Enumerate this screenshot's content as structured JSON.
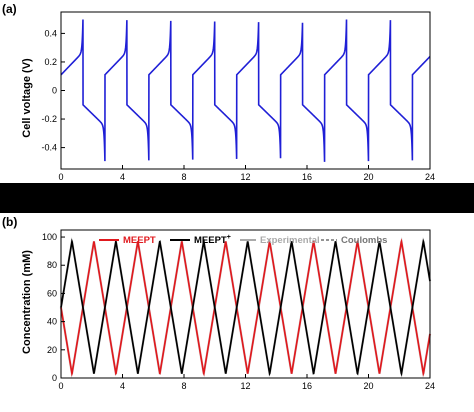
{
  "chart_data": [
    {
      "type": "line",
      "panel_label": "(a)",
      "ylabel": "Cell voltage (V)",
      "xlim": [
        0,
        24
      ],
      "ylim": [
        -0.55,
        0.55
      ],
      "xticks": [
        0,
        4,
        8,
        12,
        16,
        20,
        24
      ],
      "yticks": [
        -0.4,
        -0.2,
        0,
        0.2,
        0.4
      ],
      "ytick_labels": [
        "-0.4",
        "-0.2",
        "0",
        "0.2",
        "0.4"
      ],
      "period_h": 2.857,
      "charge_start_V": 0.11,
      "charge_end_V": 0.27,
      "spike_high_V": 0.5,
      "discharge_start_V": -0.1,
      "discharge_end_V": -0.25,
      "spike_low_V": -0.5,
      "series": [
        {
          "color": "#1f1fd6"
        }
      ]
    },
    {
      "type": "line",
      "panel_label": "(b)",
      "ylabel": "Concentration (mM)",
      "xlim": [
        0,
        24
      ],
      "ylim": [
        0,
        105
      ],
      "xticks": [
        0,
        4,
        8,
        12,
        16,
        20,
        24
      ],
      "yticks": [
        0,
        20,
        40,
        60,
        80,
        100
      ],
      "ytick_labels": [
        "0",
        "20",
        "40",
        "60",
        "80",
        "100"
      ],
      "period_h": 2.857,
      "min_mM": 3,
      "max_mM": 97,
      "series": [
        {
          "name": "MEEPT",
          "color": "#e0191e",
          "start_mM": 50,
          "start_dir": -1
        },
        {
          "name": "MEEPT",
          "name_sup": "+",
          "color": "#000000",
          "start_mM": 50,
          "start_dir": 1
        },
        {
          "name": "Experimental",
          "color": "#aaaaaa",
          "legend_only": true
        },
        {
          "name": "Coulombs",
          "color": "#555555",
          "dashed": true,
          "legend_only": true
        }
      ]
    }
  ],
  "colors": {
    "separator_band": "#000000"
  }
}
